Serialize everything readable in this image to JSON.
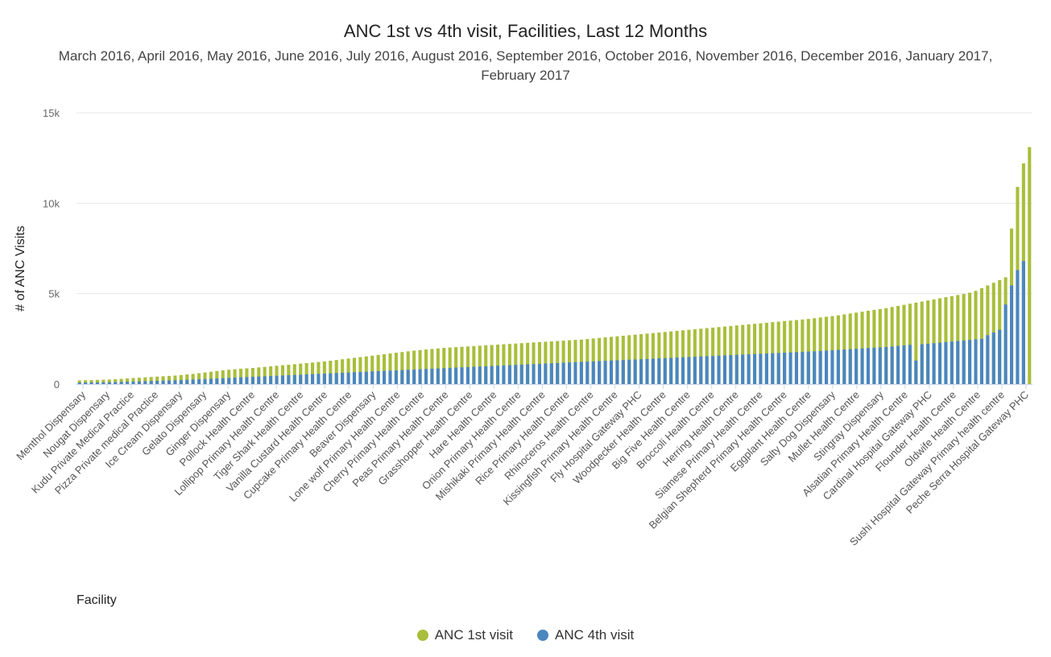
{
  "chart_data": {
    "type": "bar",
    "title": "ANC 1st vs 4th visit, Facilities, Last 12 Months",
    "subtitle": "March 2016, April 2016, May 2016, June 2016, July 2016, August 2016, September 2016, October 2016, November 2016, December 2016, January 2017, February 2017",
    "xlabel": "Facility",
    "ylabel": "# of ANC Visits",
    "ylim": [
      0,
      15000
    ],
    "yticks": [
      0,
      5000,
      10000,
      15000
    ],
    "ytick_labels": [
      "0",
      "5k",
      "10k",
      "15k"
    ],
    "grid": true,
    "legend_position": "bottom",
    "labeled_categories": [
      "Menthol Dispensary",
      "Nougat Dispensary",
      "Kudu Private Medical Practice",
      "Pizza Private medical Practice",
      "Ice Cream Dispensary",
      "Gelato Dispensary",
      "Ginger Dispensary",
      "Pollock Health Centre",
      "Lollipop Primary Health Centre",
      "Tiger Shark Health Centre",
      "Vanilla Custard Health Centre",
      "Cupcake Primary Health Centre",
      "Beaver Dispensary",
      "Lone wolf Primary Health Centre",
      "Cherry Primary Health Centre",
      "Peas Primary Health Centre",
      "Grasshopper Health Centre",
      "Hare Health Centre",
      "Onion Primary Health Centre",
      "Mishikaki Primary Health Centre",
      "Rice Primary Health Centre",
      "Rhinoceros Health Centre",
      "Kissingfish Primary Health Centre",
      "Fly Hospital Gateway PHC",
      "Woodpecker Health Centre",
      "Big Five Health Centre",
      "Broccoli Health Centre",
      "Herring Health Centre",
      "Siamese Primary Health Centre",
      "Belgian Shepherd Primary Health Centre",
      "Eggplant Health Centre",
      "Salty Dog Dispensary",
      "Mullet Health Centre",
      "Stingray Dispensary",
      "Alsatian Primary Health Centre",
      "Cardinal Hospital Gateway PHC",
      "Flounder Health Centre",
      "Oldwife Health Centre",
      "Sushi Hospital Gateway Primary health centre",
      "Peche Serra Hospital Gateway PHC"
    ],
    "series": [
      {
        "name": "ANC 1st visit",
        "color": "#a9be3b",
        "values": [
          200,
          210,
          220,
          230,
          240,
          250,
          270,
          290,
          310,
          330,
          350,
          370,
          390,
          410,
          430,
          450,
          470,
          500,
          530,
          560,
          600,
          640,
          680,
          720,
          760,
          790,
          820,
          850,
          870,
          890,
          920,
          950,
          980,
          1010,
          1040,
          1070,
          1100,
          1130,
          1160,
          1190,
          1220,
          1250,
          1290,
          1330,
          1370,
          1410,
          1450,
          1490,
          1530,
          1570,
          1610,
          1650,
          1690,
          1730,
          1770,
          1810,
          1850,
          1880,
          1910,
          1940,
          1970,
          2000,
          2020,
          2040,
          2060,
          2080,
          2100,
          2120,
          2140,
          2160,
          2180,
          2200,
          2220,
          2240,
          2260,
          2280,
          2300,
          2320,
          2340,
          2360,
          2380,
          2400,
          2420,
          2440,
          2460,
          2490,
          2520,
          2550,
          2580,
          2610,
          2640,
          2670,
          2700,
          2730,
          2760,
          2790,
          2820,
          2850,
          2880,
          2910,
          2940,
          2970,
          3000,
          3030,
          3060,
          3090,
          3120,
          3150,
          3180,
          3210,
          3240,
          3270,
          3300,
          3330,
          3360,
          3390,
          3420,
          3450,
          3480,
          3510,
          3540,
          3570,
          3600,
          3640,
          3680,
          3720,
          3760,
          3800,
          3850,
          3900,
          3950,
          4000,
          4050,
          4100,
          4150,
          4200,
          4260,
          4320,
          4380,
          4440,
          4500,
          4560,
          4620,
          4680,
          4740,
          4800,
          4860,
          4920,
          4980,
          5050,
          5150,
          5300,
          5450,
          5600,
          5750,
          5900,
          8600,
          10900,
          12200,
          13100
        ]
      },
      {
        "name": "ANC 4th visit",
        "color": "#4a86bf",
        "values": [
          80,
          85,
          90,
          95,
          100,
          105,
          110,
          120,
          130,
          140,
          150,
          160,
          170,
          180,
          190,
          200,
          210,
          220,
          235,
          250,
          265,
          280,
          295,
          310,
          325,
          340,
          355,
          370,
          385,
          400,
          415,
          430,
          445,
          460,
          475,
          490,
          505,
          520,
          535,
          550,
          565,
          580,
          595,
          610,
          625,
          640,
          655,
          670,
          685,
          700,
          715,
          730,
          745,
          760,
          775,
          790,
          805,
          820,
          835,
          850,
          865,
          880,
          895,
          910,
          925,
          940,
          955,
          970,
          985,
          1000,
          1015,
          1030,
          1045,
          1060,
          1075,
          1090,
          1105,
          1120,
          1135,
          1150,
          1165,
          1180,
          1195,
          1210,
          1225,
          1240,
          1255,
          1270,
          1285,
          1300,
          1315,
          1330,
          1345,
          1360,
          1375,
          1390,
          1405,
          1420,
          1435,
          1450,
          1465,
          1480,
          1495,
          1510,
          1525,
          1540,
          1555,
          1570,
          1585,
          1600,
          1615,
          1630,
          1645,
          1660,
          1675,
          1690,
          1705,
          1720,
          1735,
          1750,
          1765,
          1780,
          1795,
          1810,
          1830,
          1850,
          1870,
          1890,
          1910,
          1930,
          1950,
          1970,
          1990,
          2010,
          2030,
          2050,
          2080,
          2110,
          2140,
          2170,
          1300,
          2200,
          2230,
          2260,
          2290,
          2320,
          2350,
          2380,
          2410,
          2440,
          2470,
          2500,
          2700,
          2850,
          3000,
          4400,
          5450,
          6300,
          6800
        ]
      }
    ]
  }
}
